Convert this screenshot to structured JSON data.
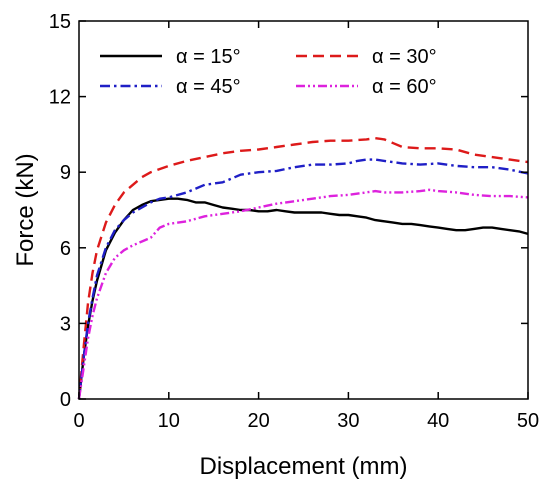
{
  "chart_data": {
    "type": "line",
    "xlabel": "Displacement (mm)",
    "ylabel": "Force (kN)",
    "xlim": [
      0,
      50
    ],
    "ylim": [
      0,
      15
    ],
    "xticks": [
      "0",
      "10",
      "20",
      "30",
      "40",
      "50"
    ],
    "yticks": [
      "0",
      "3",
      "6",
      "9",
      "12",
      "15"
    ],
    "grid": false,
    "legend_position": "top",
    "series": [
      {
        "name": "α = 15°",
        "color": "#000000",
        "dash": "solid",
        "x": [
          0,
          0.5,
          1,
          1.5,
          2,
          3,
          4,
          5,
          6,
          7,
          8,
          9,
          10,
          11,
          12,
          13,
          14,
          15,
          16,
          17,
          18,
          19,
          20,
          21,
          22,
          23,
          24,
          25,
          26,
          27,
          28,
          29,
          30,
          31,
          32,
          33,
          34,
          35,
          36,
          37,
          38,
          39,
          40,
          41,
          42,
          43,
          44,
          45,
          46,
          47,
          48,
          49,
          50
        ],
        "y": [
          0,
          1.6,
          2.9,
          3.9,
          4.7,
          5.9,
          6.6,
          7.1,
          7.5,
          7.7,
          7.85,
          7.9,
          7.95,
          7.95,
          7.9,
          7.8,
          7.8,
          7.7,
          7.6,
          7.55,
          7.5,
          7.5,
          7.45,
          7.45,
          7.5,
          7.45,
          7.4,
          7.4,
          7.4,
          7.4,
          7.35,
          7.3,
          7.3,
          7.25,
          7.2,
          7.1,
          7.05,
          7.0,
          6.95,
          6.95,
          6.9,
          6.85,
          6.8,
          6.75,
          6.7,
          6.7,
          6.75,
          6.8,
          6.8,
          6.75,
          6.7,
          6.65,
          6.55
        ]
      },
      {
        "name": "α = 30°",
        "color": "#dd1a1a",
        "dash": "dashed",
        "x": [
          0,
          0.5,
          1,
          1.5,
          2,
          3,
          4,
          5,
          6,
          7,
          8,
          10,
          12,
          14,
          16,
          18,
          20,
          22,
          24,
          26,
          28,
          30,
          32,
          33,
          34,
          35,
          36,
          38,
          40,
          42,
          44,
          46,
          48,
          50
        ],
        "y": [
          0,
          2.0,
          3.8,
          5.0,
          5.9,
          7.0,
          7.7,
          8.2,
          8.5,
          8.8,
          9.0,
          9.25,
          9.45,
          9.6,
          9.75,
          9.85,
          9.9,
          10.0,
          10.1,
          10.2,
          10.25,
          10.25,
          10.3,
          10.35,
          10.3,
          10.15,
          10.0,
          9.95,
          9.95,
          9.9,
          9.7,
          9.6,
          9.5,
          9.4
        ]
      },
      {
        "name": "α = 45°",
        "color": "#1f1fc6",
        "dash": "dashdot",
        "x": [
          0,
          0.5,
          1,
          1.5,
          2,
          3,
          4,
          5,
          6,
          7,
          8,
          9,
          10,
          12,
          14,
          16,
          18,
          20,
          22,
          24,
          26,
          28,
          30,
          31,
          32,
          33,
          34,
          36,
          38,
          40,
          42,
          44,
          46,
          48,
          50
        ],
        "y": [
          0,
          1.6,
          3.0,
          4.0,
          4.9,
          6.0,
          6.7,
          7.1,
          7.4,
          7.6,
          7.8,
          7.95,
          8.0,
          8.2,
          8.5,
          8.6,
          8.9,
          9.0,
          9.05,
          9.2,
          9.3,
          9.3,
          9.35,
          9.45,
          9.5,
          9.5,
          9.45,
          9.35,
          9.3,
          9.35,
          9.25,
          9.2,
          9.2,
          9.1,
          8.95
        ]
      },
      {
        "name": "α = 60°",
        "color": "#dd22dd",
        "dash": "dashdotdot",
        "x": [
          0,
          0.5,
          1,
          1.5,
          2,
          3,
          4,
          5,
          6,
          7,
          8,
          9,
          10,
          12,
          14,
          16,
          18,
          20,
          22,
          24,
          26,
          28,
          30,
          32,
          33,
          34,
          36,
          38,
          39,
          40,
          42,
          44,
          46,
          48,
          50
        ],
        "y": [
          0,
          1.2,
          2.4,
          3.3,
          4.0,
          5.0,
          5.6,
          5.9,
          6.1,
          6.25,
          6.4,
          6.8,
          6.95,
          7.05,
          7.25,
          7.35,
          7.45,
          7.6,
          7.75,
          7.85,
          7.95,
          8.05,
          8.1,
          8.2,
          8.25,
          8.2,
          8.2,
          8.25,
          8.3,
          8.25,
          8.2,
          8.1,
          8.05,
          8.05,
          8.0
        ]
      }
    ]
  }
}
